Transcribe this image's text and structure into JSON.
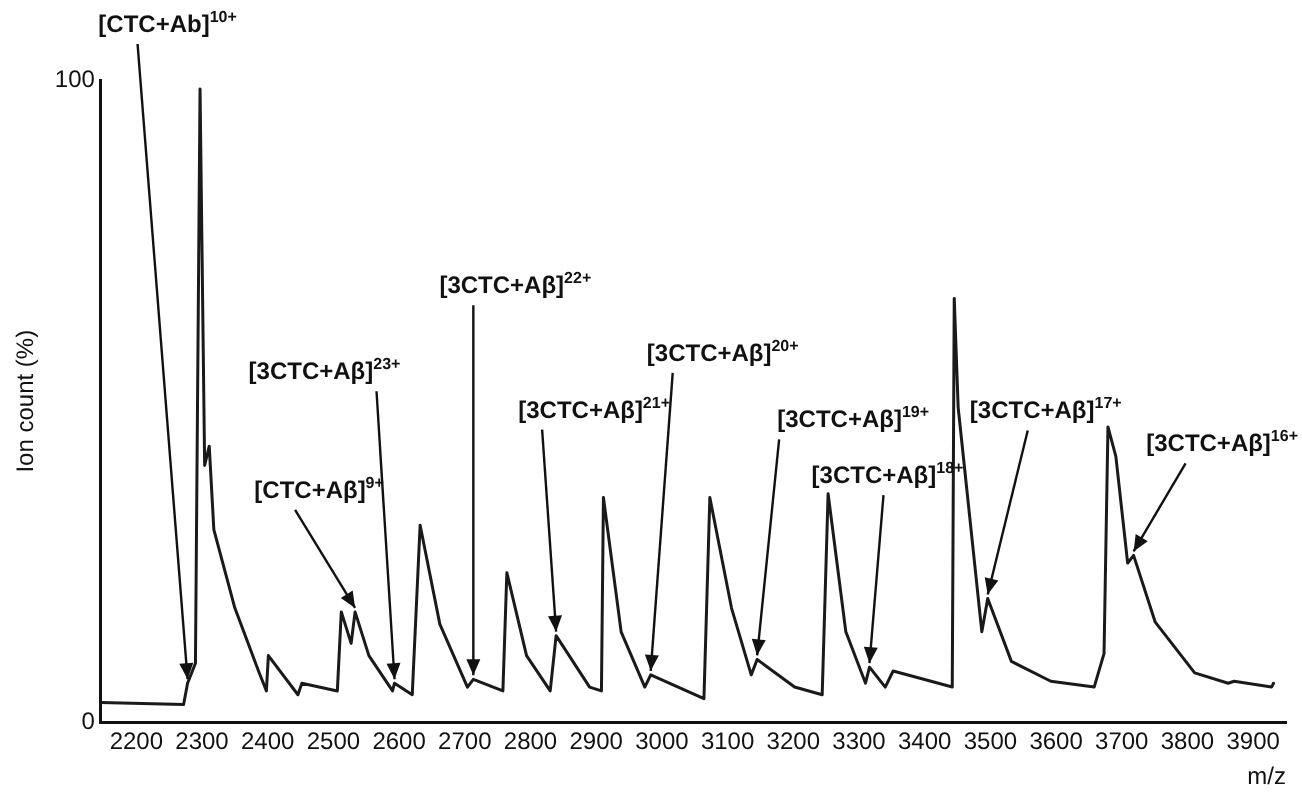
{
  "chart_data": {
    "type": "line",
    "xlabel": "m/z",
    "ylabel": "Ion count (%)",
    "xlim": [
      2146,
      3950
    ],
    "xticks": [
      2200,
      2300,
      2400,
      2500,
      2600,
      2700,
      2800,
      2900,
      3000,
      3100,
      3200,
      3300,
      3400,
      3500,
      3600,
      3700,
      3800,
      3900
    ],
    "ylim": [
      0,
      100
    ],
    "yticks": [
      0,
      100
    ],
    "grid": false,
    "legend": false,
    "marker": "none",
    "line_style": "solid",
    "series": [
      {
        "color": "#1a1a1a",
        "x": [
          2146,
          2272,
          2278,
          2290,
          2297,
          2304,
          2311,
          2318,
          2350,
          2386,
          2398,
          2401,
          2446,
          2452,
          2506,
          2512,
          2527,
          2533,
          2554,
          2590,
          2593,
          2620,
          2632,
          2662,
          2704,
          2713,
          2758,
          2764,
          2794,
          2830,
          2839,
          2890,
          2908,
          2911,
          2938,
          2974,
          2983,
          3064,
          3073,
          3106,
          3136,
          3145,
          3202,
          3244,
          3253,
          3280,
          3310,
          3316,
          3340,
          3352,
          3442,
          3445,
          3451,
          3487,
          3496,
          3532,
          3592,
          3658,
          3673,
          3679,
          3691,
          3709,
          3718,
          3751,
          3811,
          3862,
          3871,
          3928,
          3931
        ],
        "values": [
          3.1,
          2.8,
          6.1,
          9.2,
          98.6,
          40,
          43,
          30,
          17.8,
          8,
          4.9,
          10.4,
          4.3,
          6.1,
          4.9,
          17.2,
          12.3,
          17.2,
          10.4,
          4.9,
          6.1,
          4.3,
          30.7,
          15.3,
          5.5,
          6.7,
          4.9,
          23.3,
          10.4,
          4.9,
          13.5,
          5.5,
          4.9,
          35,
          14.1,
          5.5,
          7.4,
          3.7,
          35,
          17.8,
          7.4,
          9.8,
          5.5,
          4.3,
          35.6,
          14.1,
          6.1,
          8.6,
          5.5,
          8,
          5.5,
          66,
          49,
          14.1,
          19.3,
          9.5,
          6.4,
          5.5,
          10.7,
          46,
          41.4,
          24.8,
          26,
          15.6,
          7.7,
          6.1,
          6.4,
          5.5,
          6.1
        ]
      }
    ],
    "annotations": [
      {
        "text": "[CTC+Ab]$^{10+}$",
        "x": 2278,
        "y": 6.1
      },
      {
        "text": "[CTC+Aβ]$^{9+}$",
        "x": 2533,
        "y": 17.2
      },
      {
        "text": "[3CTC+Aβ]$^{23+}$",
        "x": 2593,
        "y": 6.1
      },
      {
        "text": "[3CTC+Aβ]$^{22+}$",
        "x": 2713,
        "y": 6.7
      },
      {
        "text": "[3CTC+Aβ]$^{21+}$",
        "x": 2839,
        "y": 13.5
      },
      {
        "text": "[3CTC+Aβ]$^{20+}$",
        "x": 2983,
        "y": 7.4
      },
      {
        "text": "[3CTC+Aβ]$^{19+}$",
        "x": 3145,
        "y": 9.8
      },
      {
        "text": "[3CTC+Aβ]$^{18+}$",
        "x": 3316,
        "y": 8.6
      },
      {
        "text": "[3CTC+Aβ]$^{17+}$",
        "x": 3496,
        "y": 19.3
      },
      {
        "text": "[3CTC+Aβ]$^{16+}$",
        "x": 3718,
        "y": 26
      }
    ]
  }
}
